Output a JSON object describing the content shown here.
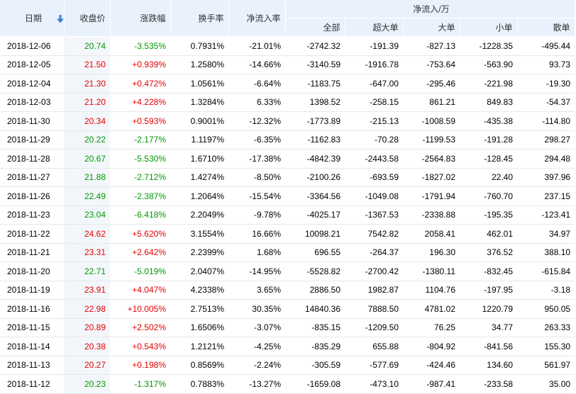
{
  "header": {
    "date": "日期",
    "close": "收盘价",
    "change": "涨跌幅",
    "turnover": "换手率",
    "net_rate": "净流入率",
    "net_group": "净流入/万",
    "all": "全部",
    "xl": "超大单",
    "l": "大单",
    "m": "小单",
    "s": "散单",
    "sort_icon": "sort-down-arrow-icon"
  },
  "colors": {
    "up": "#e30000",
    "down": "#009900",
    "header_bg": "#e8f1fc"
  },
  "rows": [
    {
      "date": "2018-12-06",
      "close": "20.74",
      "change": "-3.535%",
      "turnover": "0.7931%",
      "net_rate": "-21.01%",
      "all": "-2742.32",
      "xl": "-191.39",
      "l": "-827.13",
      "m": "-1228.35",
      "s": "-495.44",
      "dir": "down"
    },
    {
      "date": "2018-12-05",
      "close": "21.50",
      "change": "+0.939%",
      "turnover": "1.2580%",
      "net_rate": "-14.66%",
      "all": "-3140.59",
      "xl": "-1916.78",
      "l": "-753.64",
      "m": "-563.90",
      "s": "93.73",
      "dir": "up"
    },
    {
      "date": "2018-12-04",
      "close": "21.30",
      "change": "+0.472%",
      "turnover": "1.0561%",
      "net_rate": "-6.64%",
      "all": "-1183.75",
      "xl": "-647.00",
      "l": "-295.46",
      "m": "-221.98",
      "s": "-19.30",
      "dir": "up"
    },
    {
      "date": "2018-12-03",
      "close": "21.20",
      "change": "+4.228%",
      "turnover": "1.3284%",
      "net_rate": "6.33%",
      "all": "1398.52",
      "xl": "-258.15",
      "l": "861.21",
      "m": "849.83",
      "s": "-54.37",
      "dir": "up"
    },
    {
      "date": "2018-11-30",
      "close": "20.34",
      "change": "+0.593%",
      "turnover": "0.9001%",
      "net_rate": "-12.32%",
      "all": "-1773.89",
      "xl": "-215.13",
      "l": "-1008.59",
      "m": "-435.38",
      "s": "-114.80",
      "dir": "up"
    },
    {
      "date": "2018-11-29",
      "close": "20.22",
      "change": "-2.177%",
      "turnover": "1.1197%",
      "net_rate": "-6.35%",
      "all": "-1162.83",
      "xl": "-70.28",
      "l": "-1199.53",
      "m": "-191.28",
      "s": "298.27",
      "dir": "down"
    },
    {
      "date": "2018-11-28",
      "close": "20.67",
      "change": "-5.530%",
      "turnover": "1.6710%",
      "net_rate": "-17.38%",
      "all": "-4842.39",
      "xl": "-2443.58",
      "l": "-2564.83",
      "m": "-128.45",
      "s": "294.48",
      "dir": "down"
    },
    {
      "date": "2018-11-27",
      "close": "21.88",
      "change": "-2.712%",
      "turnover": "1.4274%",
      "net_rate": "-8.50%",
      "all": "-2100.26",
      "xl": "-693.59",
      "l": "-1827.02",
      "m": "22.40",
      "s": "397.96",
      "dir": "down"
    },
    {
      "date": "2018-11-26",
      "close": "22.49",
      "change": "-2.387%",
      "turnover": "1.2064%",
      "net_rate": "-15.54%",
      "all": "-3364.56",
      "xl": "-1049.08",
      "l": "-1791.94",
      "m": "-760.70",
      "s": "237.15",
      "dir": "down"
    },
    {
      "date": "2018-11-23",
      "close": "23.04",
      "change": "-6.418%",
      "turnover": "2.2049%",
      "net_rate": "-9.78%",
      "all": "-4025.17",
      "xl": "-1367.53",
      "l": "-2338.88",
      "m": "-195.35",
      "s": "-123.41",
      "dir": "down"
    },
    {
      "date": "2018-11-22",
      "close": "24.62",
      "change": "+5.620%",
      "turnover": "3.1554%",
      "net_rate": "16.66%",
      "all": "10098.21",
      "xl": "7542.82",
      "l": "2058.41",
      "m": "462.01",
      "s": "34.97",
      "dir": "up"
    },
    {
      "date": "2018-11-21",
      "close": "23.31",
      "change": "+2.642%",
      "turnover": "2.2399%",
      "net_rate": "1.68%",
      "all": "696.55",
      "xl": "-264.37",
      "l": "196.30",
      "m": "376.52",
      "s": "388.10",
      "dir": "up"
    },
    {
      "date": "2018-11-20",
      "close": "22.71",
      "change": "-5.019%",
      "turnover": "2.0407%",
      "net_rate": "-14.95%",
      "all": "-5528.82",
      "xl": "-2700.42",
      "l": "-1380.11",
      "m": "-832.45",
      "s": "-615.84",
      "dir": "down"
    },
    {
      "date": "2018-11-19",
      "close": "23.91",
      "change": "+4.047%",
      "turnover": "4.2338%",
      "net_rate": "3.65%",
      "all": "2886.50",
      "xl": "1982.87",
      "l": "1104.76",
      "m": "-197.95",
      "s": "-3.18",
      "dir": "up"
    },
    {
      "date": "2018-11-16",
      "close": "22.98",
      "change": "+10.005%",
      "turnover": "2.7513%",
      "net_rate": "30.35%",
      "all": "14840.36",
      "xl": "7888.50",
      "l": "4781.02",
      "m": "1220.79",
      "s": "950.05",
      "dir": "up"
    },
    {
      "date": "2018-11-15",
      "close": "20.89",
      "change": "+2.502%",
      "turnover": "1.6506%",
      "net_rate": "-3.07%",
      "all": "-835.15",
      "xl": "-1209.50",
      "l": "76.25",
      "m": "34.77",
      "s": "263.33",
      "dir": "up"
    },
    {
      "date": "2018-11-14",
      "close": "20.38",
      "change": "+0.543%",
      "turnover": "1.2121%",
      "net_rate": "-4.25%",
      "all": "-835.29",
      "xl": "655.88",
      "l": "-804.92",
      "m": "-841.56",
      "s": "155.30",
      "dir": "up"
    },
    {
      "date": "2018-11-13",
      "close": "20.27",
      "change": "+0.198%",
      "turnover": "0.8569%",
      "net_rate": "-2.24%",
      "all": "-305.59",
      "xl": "-577.69",
      "l": "-424.46",
      "m": "134.60",
      "s": "561.97",
      "dir": "up"
    },
    {
      "date": "2018-11-12",
      "close": "20.23",
      "change": "-1.317%",
      "turnover": "0.7883%",
      "net_rate": "-13.27%",
      "all": "-1659.08",
      "xl": "-473.10",
      "l": "-987.41",
      "m": "-233.58",
      "s": "35.00",
      "dir": "down"
    }
  ]
}
